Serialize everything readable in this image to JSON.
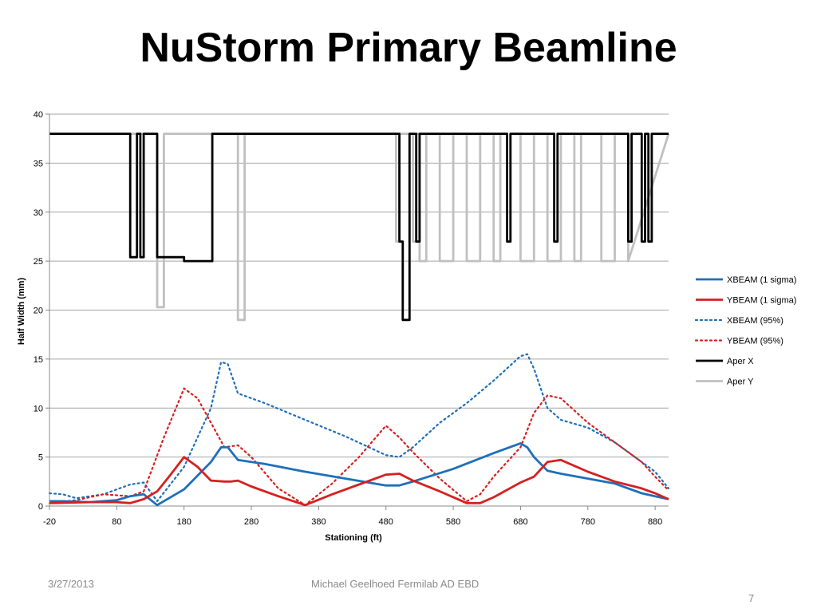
{
  "slide": {
    "title": "NuStorm Primary Beamline",
    "footer_date": "3/27/2013",
    "footer_author": "Michael Geelhoed Fermilab AD EBD",
    "page_number": "7"
  },
  "chart_data": {
    "type": "line",
    "title": "",
    "xlabel": "Stationing (ft)",
    "ylabel": "Half Width (mm)",
    "xlim": [
      -20,
      900
    ],
    "ylim": [
      0,
      40
    ],
    "xticks": [
      "-20",
      "80",
      "180",
      "280",
      "380",
      "480",
      "580",
      "680",
      "780",
      "880"
    ],
    "yticks": [
      "0",
      "5",
      "10",
      "15",
      "20",
      "25",
      "30",
      "35",
      "40"
    ],
    "grid": "horizontal",
    "legend": "right",
    "series": [
      {
        "name": "XBEAM (1 sigma)",
        "color": "#1f6fba",
        "style": "solid",
        "x": [
          -20,
          0,
          40,
          80,
          100,
          120,
          140,
          180,
          220,
          235,
          245,
          260,
          300,
          360,
          420,
          480,
          500,
          520,
          580,
          640,
          680,
          690,
          700,
          720,
          740,
          780,
          820,
          860,
          880,
          900
        ],
        "y": [
          0.5,
          0.5,
          0.4,
          0.6,
          1.0,
          1.2,
          0.1,
          1.7,
          4.5,
          6.0,
          6.0,
          4.7,
          4.3,
          3.5,
          2.8,
          2.1,
          2.1,
          2.5,
          3.8,
          5.4,
          6.4,
          6.0,
          5.0,
          3.6,
          3.3,
          2.8,
          2.3,
          1.3,
          1.0,
          0.7
        ]
      },
      {
        "name": "YBEAM (1 sigma)",
        "color": "#d62020",
        "style": "solid",
        "x": [
          -20,
          40,
          80,
          100,
          120,
          140,
          160,
          180,
          200,
          220,
          240,
          250,
          260,
          280,
          320,
          360,
          400,
          440,
          480,
          500,
          520,
          560,
          600,
          620,
          640,
          680,
          700,
          720,
          740,
          780,
          820,
          860,
          880,
          900
        ],
        "y": [
          0.3,
          0.4,
          0.4,
          0.3,
          0.7,
          1.5,
          3.2,
          5.0,
          4.0,
          2.6,
          2.5,
          2.5,
          2.6,
          2.0,
          1.0,
          0.1,
          1.2,
          2.2,
          3.2,
          3.3,
          2.6,
          1.5,
          0.3,
          0.3,
          0.9,
          2.4,
          3.0,
          4.5,
          4.7,
          3.5,
          2.5,
          1.8,
          1.3,
          0.7
        ]
      },
      {
        "name": "XBEAM (95%)",
        "color": "#1f6fba",
        "style": "dotted",
        "x": [
          -20,
          0,
          20,
          60,
          100,
          120,
          140,
          180,
          220,
          235,
          245,
          260,
          300,
          360,
          420,
          480,
          500,
          520,
          560,
          600,
          640,
          680,
          690,
          700,
          720,
          740,
          780,
          820,
          860,
          880,
          900
        ],
        "y": [
          1.3,
          1.2,
          0.8,
          1.2,
          2.2,
          2.4,
          0.5,
          4.0,
          10.0,
          14.7,
          14.5,
          11.5,
          10.5,
          8.8,
          7.1,
          5.2,
          5.0,
          6.0,
          8.5,
          10.5,
          12.8,
          15.3,
          15.5,
          14.0,
          10.0,
          8.8,
          8.0,
          6.5,
          4.5,
          3.5,
          1.8
        ]
      },
      {
        "name": "YBEAM (95%)",
        "color": "#d62020",
        "style": "dotted",
        "x": [
          -20,
          20,
          60,
          100,
          120,
          150,
          180,
          200,
          220,
          240,
          260,
          280,
          320,
          360,
          400,
          440,
          480,
          500,
          520,
          560,
          600,
          620,
          640,
          680,
          700,
          720,
          740,
          780,
          820,
          860,
          880,
          900
        ],
        "y": [
          0.3,
          0.6,
          1.2,
          1.0,
          1.5,
          7.0,
          12.0,
          11.0,
          8.5,
          6.0,
          6.2,
          5.0,
          1.8,
          0.1,
          2.3,
          5.0,
          8.2,
          7.0,
          5.5,
          2.8,
          0.5,
          1.2,
          3.0,
          6.0,
          9.5,
          11.3,
          11.0,
          8.5,
          6.5,
          4.5,
          3.0,
          1.6
        ]
      },
      {
        "name": "Aper X",
        "color": "#000000",
        "style": "solid",
        "x": [
          -20,
          100,
          100,
          110,
          110,
          115,
          115,
          120,
          120,
          140,
          140,
          180,
          180,
          222,
          222,
          260,
          260,
          270,
          270,
          500,
          500,
          505,
          505,
          515,
          515,
          525,
          525,
          530,
          530,
          660,
          660,
          665,
          665,
          730,
          730,
          735,
          735,
          840,
          840,
          845,
          845,
          860,
          860,
          865,
          865,
          870,
          870,
          875,
          875,
          900
        ],
        "y": [
          38,
          38,
          25.4,
          25.4,
          38,
          38,
          25.4,
          25.4,
          38,
          38,
          25.4,
          25.4,
          25,
          25,
          38,
          38,
          38,
          38,
          38,
          38,
          27,
          27,
          19,
          19,
          38,
          38,
          27,
          27,
          38,
          38,
          27,
          27,
          38,
          38,
          27,
          27,
          38,
          38,
          27,
          27,
          38,
          38,
          27,
          27,
          38,
          38,
          27,
          27,
          38,
          38
        ]
      },
      {
        "name": "Aper Y",
        "color": "#c0c0c0",
        "style": "solid",
        "x": [
          -20,
          140,
          140,
          150,
          150,
          200,
          220,
          260,
          260,
          270,
          270,
          495,
          495,
          500,
          500,
          520,
          520,
          525,
          525,
          530,
          530,
          540,
          540,
          560,
          560,
          580,
          580,
          600,
          600,
          620,
          620,
          640,
          640,
          650,
          650,
          660,
          660,
          665,
          665,
          680,
          680,
          700,
          700,
          720,
          720,
          740,
          740,
          760,
          760,
          770,
          770,
          800,
          800,
          820,
          820,
          840,
          840,
          900
        ],
        "y": [
          38,
          38,
          20.3,
          20.3,
          38,
          38,
          38,
          38,
          19,
          19,
          38,
          38,
          27,
          27,
          38,
          38,
          27,
          27,
          38,
          38,
          25,
          25,
          38,
          38,
          25,
          25,
          38,
          38,
          25,
          25,
          38,
          38,
          25,
          25,
          38,
          38,
          27,
          27,
          38,
          38,
          25,
          25,
          38,
          38,
          25,
          25,
          38,
          38,
          25,
          25,
          38,
          38,
          25,
          25,
          38,
          38,
          25,
          38
        ]
      }
    ]
  }
}
